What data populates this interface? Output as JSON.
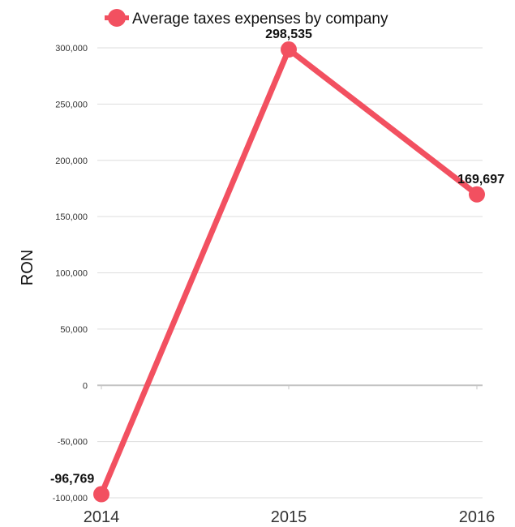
{
  "chart_data": {
    "type": "line",
    "title": "",
    "xlabel": "",
    "ylabel": "RON",
    "categories": [
      "2014",
      "2015",
      "2016"
    ],
    "series": [
      {
        "name": "Average taxes expenses by company",
        "values": [
          -96769,
          298535,
          169697
        ],
        "color": "#f25060"
      }
    ],
    "data_labels": [
      "-96,769",
      "298,535",
      "169,697"
    ],
    "ylim": [
      -100000,
      300000
    ],
    "y_ticks": [
      -100000,
      -50000,
      0,
      50000,
      100000,
      150000,
      200000,
      250000,
      300000
    ],
    "y_tick_labels": [
      "-100,000",
      "-50,000",
      "0",
      "50,000",
      "100,000",
      "150,000",
      "200,000",
      "250,000",
      "300,000"
    ],
    "grid": true,
    "legend_position": "top"
  }
}
